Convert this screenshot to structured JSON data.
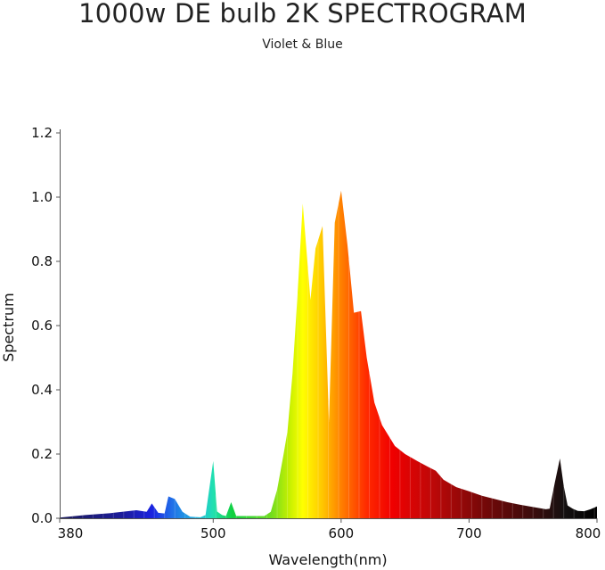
{
  "chart_data": {
    "type": "area",
    "title": "1000w DE bulb 2K SPECTROGRAM",
    "subtitle": "Violet & Blue",
    "xlabel": "Wavelength(nm)",
    "ylabel": "Spectrum",
    "xlim": [
      380,
      800
    ],
    "ylim": [
      0,
      1.2
    ],
    "xticks": [
      380,
      500,
      600,
      700,
      800
    ],
    "xtick_labels": [
      "380",
      "500",
      "600",
      "700",
      "800"
    ],
    "yticks": [
      0,
      0.2,
      0.4,
      0.6,
      0.8,
      1.0,
      1.2
    ],
    "ytick_labels": [
      "0.0",
      "0.2",
      "0.4",
      "0.6",
      "0.8",
      "1.0",
      "1.2"
    ],
    "grid": false,
    "fill": "wavelength-rainbow-gradient",
    "x": [
      380,
      400,
      420,
      440,
      448,
      452,
      457,
      462,
      465,
      470,
      476,
      482,
      490,
      494,
      500,
      503,
      507,
      510,
      514,
      518,
      530,
      540,
      545,
      550,
      555,
      558,
      562,
      566,
      570,
      576,
      580,
      585.5,
      590.5,
      595,
      600,
      605,
      610,
      615.5,
      620,
      626,
      632,
      642,
      650,
      660,
      668,
      674,
      680,
      690,
      700,
      710,
      720,
      730,
      740,
      750,
      760,
      763,
      767,
      771,
      774,
      777,
      781,
      785,
      790,
      795,
      800
    ],
    "y": [
      0.002,
      0.01,
      0.016,
      0.025,
      0.02,
      0.046,
      0.017,
      0.015,
      0.068,
      0.06,
      0.02,
      0.005,
      0.003,
      0.01,
      0.178,
      0.021,
      0.01,
      0.007,
      0.05,
      0.007,
      0.007,
      0.007,
      0.02,
      0.09,
      0.2,
      0.27,
      0.45,
      0.7,
      0.98,
      0.68,
      0.84,
      0.91,
      0.3,
      0.92,
      1.02,
      0.85,
      0.64,
      0.645,
      0.5,
      0.36,
      0.29,
      0.225,
      0.2,
      0.177,
      0.16,
      0.148,
      0.12,
      0.097,
      0.084,
      0.07,
      0.06,
      0.05,
      0.042,
      0.035,
      0.028,
      0.03,
      0.11,
      0.186,
      0.1,
      0.04,
      0.03,
      0.023,
      0.022,
      0.028,
      0.037
    ]
  }
}
